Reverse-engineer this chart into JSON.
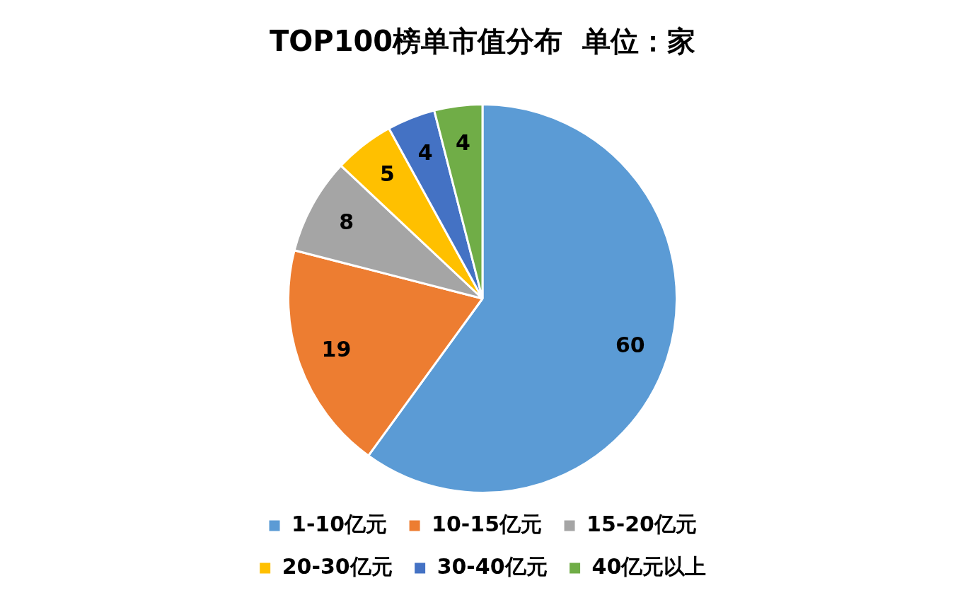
{
  "chart_data": {
    "type": "pie",
    "title": "TOP100榜单市值分布  单位：家",
    "categories": [
      "1-10亿元",
      "10-15亿元",
      "15-20亿元",
      "20-30亿元",
      "30-40亿元",
      "40亿元以上"
    ],
    "values": [
      60,
      19,
      8,
      5,
      4,
      4
    ],
    "colors": [
      "#5b9bd5",
      "#ed7d31",
      "#a5a5a5",
      "#ffc000",
      "#4472c4",
      "#70ad47"
    ],
    "data_labels": true,
    "legend": "bottom"
  }
}
